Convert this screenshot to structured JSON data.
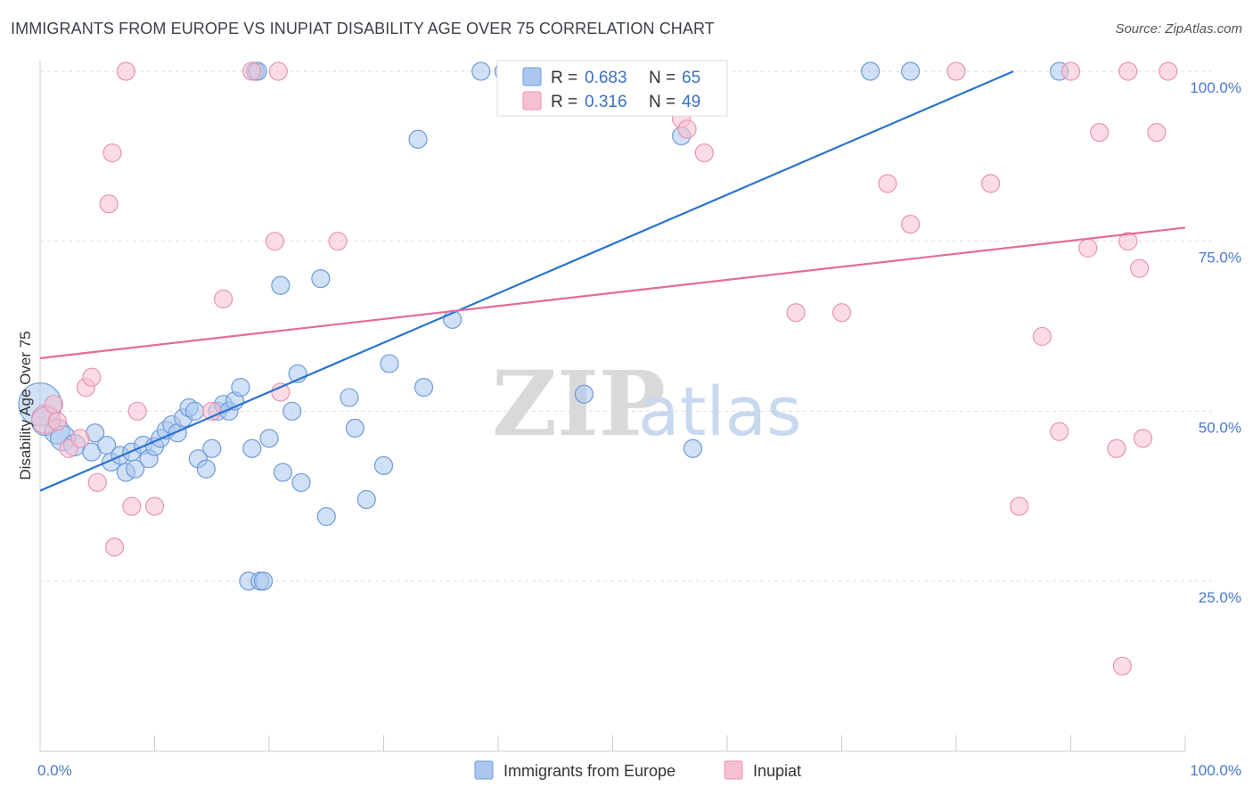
{
  "title": "IMMIGRANTS FROM EUROPE VS INUPIAT DISABILITY AGE OVER 75 CORRELATION CHART",
  "source": "Source: ZipAtlas.com",
  "watermark": {
    "zip": "ZIP",
    "atlas": "atlas"
  },
  "colors": {
    "blue_fill": "#a9c7ef",
    "blue_stroke": "#6f9bd8",
    "blue_line": "#2b73d1",
    "pink_fill": "#f7c0d0",
    "pink_stroke": "#e894b0",
    "pink_line": "#e56b98",
    "grid": "#dddddd",
    "tick_text": "#4a78c8"
  },
  "legend": {
    "rows": [
      {
        "r_label": "R =",
        "r_value": "0.683",
        "n_label": "N =",
        "n_value": "65"
      },
      {
        "r_label": "R =",
        "r_value": "0.316",
        "n_label": "N =",
        "n_value": "49"
      }
    ]
  },
  "chart_data": {
    "type": "scatter",
    "title": "IMMIGRANTS FROM EUROPE VS INUPIAT DISABILITY AGE OVER 75 CORRELATION CHART",
    "xlabel": "",
    "ylabel": "Disability Age Over 75",
    "xlim": [
      0,
      100
    ],
    "ylim": [
      0,
      105
    ],
    "x_tick_labels": [
      "0.0%",
      "100.0%"
    ],
    "y_ticks": [
      25,
      50,
      75,
      100
    ],
    "y_tick_labels": [
      "25.0%",
      "50.0%",
      "75.0%",
      "100.0%"
    ],
    "grid": true,
    "legend_placement": "top-center",
    "series": [
      {
        "name": "Immigrants from Europe",
        "color": "#a9c7ef",
        "trend": [
          [
            0,
            38.3
          ],
          [
            85,
            100
          ]
        ],
        "points": [
          [
            0,
            51,
            24
          ],
          [
            0.5,
            48.5,
            16
          ],
          [
            1.5,
            47,
            14
          ],
          [
            2,
            46,
            14
          ],
          [
            3,
            45,
            12
          ],
          [
            4.5,
            44,
            10
          ],
          [
            4.8,
            46.8,
            10
          ],
          [
            5.8,
            45,
            10
          ],
          [
            6.2,
            42.5,
            10
          ],
          [
            7,
            43.5,
            10
          ],
          [
            7.5,
            41,
            10
          ],
          [
            8,
            44,
            10
          ],
          [
            8.3,
            41.5,
            10
          ],
          [
            9,
            45,
            10
          ],
          [
            9.5,
            43,
            10
          ],
          [
            10,
            44.8,
            10
          ],
          [
            10.5,
            46,
            10
          ],
          [
            11,
            47.2,
            10
          ],
          [
            11.5,
            48,
            10
          ],
          [
            12,
            46.8,
            10
          ],
          [
            12.5,
            49,
            10
          ],
          [
            13,
            50.5,
            10
          ],
          [
            13.5,
            50,
            10
          ],
          [
            13.8,
            43,
            10
          ],
          [
            14.5,
            41.5,
            10
          ],
          [
            15,
            44.5,
            10
          ],
          [
            15.5,
            50,
            10
          ],
          [
            16,
            51,
            10
          ],
          [
            16.5,
            50,
            10
          ],
          [
            17,
            51.5,
            10
          ],
          [
            17.5,
            53.5,
            10
          ],
          [
            18.2,
            25,
            10
          ],
          [
            18.5,
            44.5,
            10
          ],
          [
            18.8,
            100,
            10
          ],
          [
            19,
            100,
            10
          ],
          [
            19.2,
            25,
            10
          ],
          [
            19.5,
            25,
            10
          ],
          [
            20,
            46,
            10
          ],
          [
            21,
            68.5,
            10
          ],
          [
            21.2,
            41,
            10
          ],
          [
            22,
            50,
            10
          ],
          [
            22.5,
            55.5,
            10
          ],
          [
            22.8,
            39.5,
            10
          ],
          [
            24.5,
            69.5,
            10
          ],
          [
            25,
            34.5,
            10
          ],
          [
            27,
            52,
            10
          ],
          [
            27.5,
            47.5,
            10
          ],
          [
            28.5,
            37,
            10
          ],
          [
            30,
            42,
            10
          ],
          [
            30.5,
            57,
            10
          ],
          [
            33,
            90,
            10
          ],
          [
            33.5,
            53.5,
            10
          ],
          [
            36,
            63.5,
            10
          ],
          [
            38.5,
            100,
            10
          ],
          [
            40.5,
            100,
            10
          ],
          [
            47,
            100,
            10
          ],
          [
            47.5,
            52.5,
            10
          ],
          [
            56,
            90.5,
            10
          ],
          [
            57,
            44.5,
            10
          ],
          [
            72.5,
            100,
            10
          ],
          [
            76,
            100,
            10
          ],
          [
            89,
            100,
            10
          ]
        ]
      },
      {
        "name": "Inupiat",
        "color": "#f7c0d0",
        "trend": [
          [
            0,
            57.8
          ],
          [
            100,
            77
          ]
        ],
        "points": [
          [
            0.5,
            48.8,
            16
          ],
          [
            1.2,
            51,
            10
          ],
          [
            1.5,
            48.5,
            10
          ],
          [
            2.5,
            44.5,
            10
          ],
          [
            3.5,
            46,
            10
          ],
          [
            4,
            53.5,
            10
          ],
          [
            4.5,
            55,
            10
          ],
          [
            5,
            39.5,
            10
          ],
          [
            6,
            80.5,
            10
          ],
          [
            6.3,
            88,
            10
          ],
          [
            6.5,
            30,
            10
          ],
          [
            7.5,
            100,
            10
          ],
          [
            8,
            36,
            10
          ],
          [
            8.5,
            50,
            10
          ],
          [
            10,
            36,
            10
          ],
          [
            15,
            50,
            10
          ],
          [
            16,
            66.5,
            10
          ],
          [
            18.5,
            100,
            10
          ],
          [
            20.5,
            75,
            10
          ],
          [
            20.8,
            100,
            10
          ],
          [
            21,
            52.8,
            10
          ],
          [
            26,
            75,
            10
          ],
          [
            52,
            96,
            10
          ],
          [
            56,
            93,
            10
          ],
          [
            56.5,
            91.5,
            10
          ],
          [
            58,
            88,
            10
          ],
          [
            66,
            64.5,
            10
          ],
          [
            70,
            64.5,
            10
          ],
          [
            74,
            83.5,
            10
          ],
          [
            76,
            77.5,
            10
          ],
          [
            80,
            100,
            10
          ],
          [
            83,
            83.5,
            10
          ],
          [
            85.5,
            36,
            10
          ],
          [
            87.5,
            61,
            10
          ],
          [
            89,
            47,
            10
          ],
          [
            90,
            100,
            10
          ],
          [
            91.5,
            74,
            10
          ],
          [
            92.5,
            91,
            10
          ],
          [
            94,
            44.5,
            10
          ],
          [
            94.5,
            12.5,
            10
          ],
          [
            95,
            75,
            10
          ],
          [
            95,
            100,
            10
          ],
          [
            96,
            71,
            10
          ],
          [
            96.3,
            46,
            10
          ],
          [
            97.5,
            91,
            10
          ],
          [
            98.5,
            100,
            10
          ]
        ]
      }
    ]
  }
}
